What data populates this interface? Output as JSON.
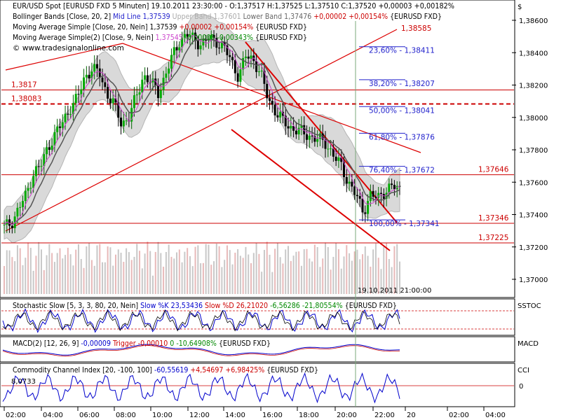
{
  "currency_symbol": "$",
  "legend": {
    "main": [
      {
        "name": "EUR/USD Spot [EURUSD FXD  5 Minuten] 19.10.2011 23:30:00 - O:1,37517 H:1,37525 L:1,37510 C:1,37520 +0,00003 +0,00182%",
        "color": "#000000"
      },
      {
        "name": "Bollinger Bands [Close, 20, 2]",
        "color": "#000000",
        "parts": [
          {
            "t": "Mid Line 1,37539",
            "color": "#2222cc"
          },
          {
            "t": "Upper Band 1,37601",
            "color": "#aaaaaa"
          },
          {
            "t": "Lower Band 1,37476",
            "color": "#666666"
          },
          {
            "t": "+0,00002 +0,00154%",
            "color": "#cc0000"
          },
          {
            "t": "{EURUSD FXD}",
            "color": "#000000"
          }
        ]
      },
      {
        "name": "Moving Average Simple [Close, 20, Nein] 1,37539",
        "color": "#000000",
        "parts": [
          {
            "t": "+0,00002 +0,00154%",
            "color": "#cc0000"
          },
          {
            "t": "{EURUSD FXD}",
            "color": "#000000"
          }
        ]
      },
      {
        "name": "Moving Average Simple(2) [Close, 9, Nein]",
        "color": "#000000",
        "parts": [
          {
            "t": "1,37545",
            "color": "#cc44cc"
          },
          {
            "t": "-0,00005 -0,00343%",
            "color": "#008800"
          },
          {
            "t": "{EURUSD FXD}",
            "color": "#000000"
          }
        ]
      },
      {
        "name": "© www.tradesignalonline.com",
        "color": "#000000"
      }
    ],
    "stochastic": {
      "name": "Stochastic Slow [5, 3, 3, 80, 20, Nein]",
      "k": "Slow %K 23,53436",
      "d": "Slow %D 26,21020",
      "chg": "-6,56286 -21,80554%",
      "sym": "{EURUSD FXD}"
    },
    "macd": {
      "name": "MACD(2) [12, 26, 9]",
      "v": "-0,00009",
      "trig": "Trigger -0,00010",
      "chg": "0 -10,64908%",
      "sym": "{EURUSD FXD}"
    },
    "cci": {
      "name": "Commodity Channel Index [20, -100, 100]",
      "v": "-60,55619",
      "chg": "+4,54697 +6,98425%",
      "sym": "{EURUSD FXD}"
    }
  },
  "panel_labels": {
    "stochastic": "SSTOC",
    "macd": "MACD",
    "cci": "CCI"
  },
  "chart_data": {
    "type": "candlestick",
    "price_axis": {
      "min": 1.37,
      "max": 1.386,
      "ticks": [
        "1,38600",
        "1,38400",
        "1,38200",
        "1,38000",
        "1,37800",
        "1,37600",
        "1,37400",
        "1,37200",
        "1,37000"
      ],
      "tick_values": [
        1.386,
        1.384,
        1.382,
        1.38,
        1.378,
        1.376,
        1.374,
        1.372,
        1.37
      ]
    },
    "time_axis": {
      "labels": [
        "02:00",
        "04:00",
        "06:00",
        "08:00",
        "10:00",
        "12:00",
        "14:00",
        "16:00",
        "18:00",
        "20:00",
        "22:00",
        "20",
        "02:00",
        "04:00"
      ]
    },
    "cursor_label": "19.10.2011 21:00:00",
    "horizontal_levels": [
      {
        "label": "1,3817",
        "value": 1.3817,
        "style": "solid"
      },
      {
        "label": "1,38083",
        "value": 1.38083,
        "style": "dashed"
      },
      {
        "label": "1,37646",
        "value": 1.37646,
        "style": "solid"
      },
      {
        "label": "1,37346",
        "value": 1.37346,
        "style": "solid"
      },
      {
        "label": "1,37225",
        "value": 1.37225,
        "style": "solid"
      }
    ],
    "trendline_label": "1,38585",
    "fibonacci": [
      {
        "label": "23,60% - 1,38411",
        "value": 1.38411
      },
      {
        "label": "38,20% - 1,38207",
        "value": 1.38207
      },
      {
        "label": "50,00% - 1,38041",
        "value": 1.38041
      },
      {
        "label": "61,80% - 1,37876",
        "value": 1.37876
      },
      {
        "label": "76,40% - 1,37672",
        "value": 1.37672
      },
      {
        "label": "100,00% - 1,37341",
        "value": 1.37341
      }
    ],
    "close_path": [
      1.3732,
      1.3735,
      1.3744,
      1.3752,
      1.3766,
      1.377,
      1.3782,
      1.379,
      1.3797,
      1.3806,
      1.3812,
      1.3825,
      1.383,
      1.3827,
      1.3815,
      1.3808,
      1.3796,
      1.38,
      1.3812,
      1.3826,
      1.3822,
      1.3815,
      1.3826,
      1.3838,
      1.3848,
      1.3851,
      1.3848,
      1.3845,
      1.3849,
      1.3847,
      1.3843,
      1.3835,
      1.3825,
      1.3838,
      1.3836,
      1.3827,
      1.3812,
      1.3804,
      1.3798,
      1.3794,
      1.3792,
      1.379,
      1.3788,
      1.3786,
      1.3784,
      1.3776,
      1.377,
      1.376,
      1.3752,
      1.3742,
      1.3752,
      1.375,
      1.3755,
      1.3757,
      1.3756
    ],
    "cci_level_label": "8,0733",
    "cci_zero_label": "0"
  }
}
